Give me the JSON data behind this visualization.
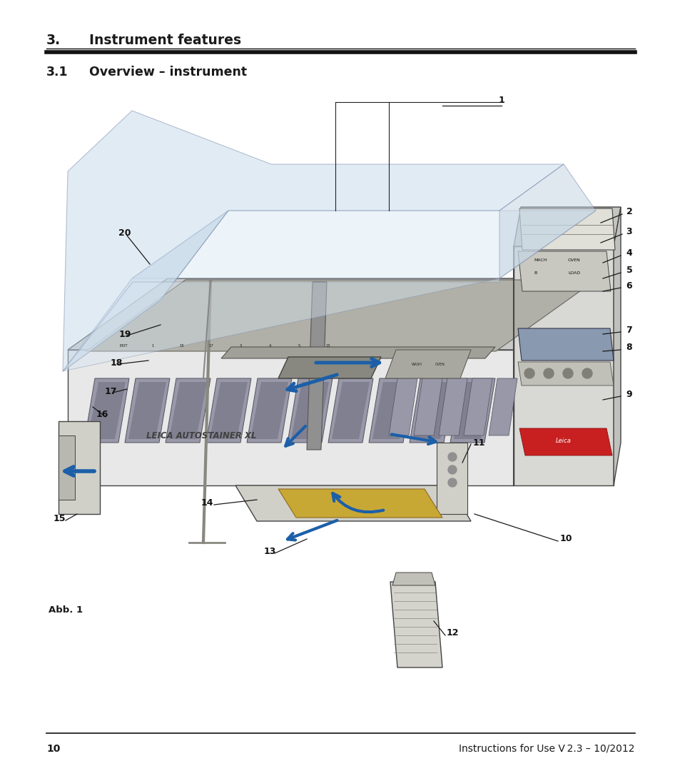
{
  "title1": "3.",
  "title1_text": "Instrument features",
  "title2": "3.1",
  "title2_text": "Overview – instrument",
  "page_number": "10",
  "footer_text": "Instructions for Use V 2.3 – 10/2012",
  "caption": "Abb. 1",
  "background_color": "#ffffff",
  "text_color": "#1a1a1a",
  "line_color": "#1a1a1a",
  "title_fontsize": 13.5,
  "subtitle_fontsize": 12.5,
  "footer_fontsize": 10,
  "label_fontsize": 9
}
